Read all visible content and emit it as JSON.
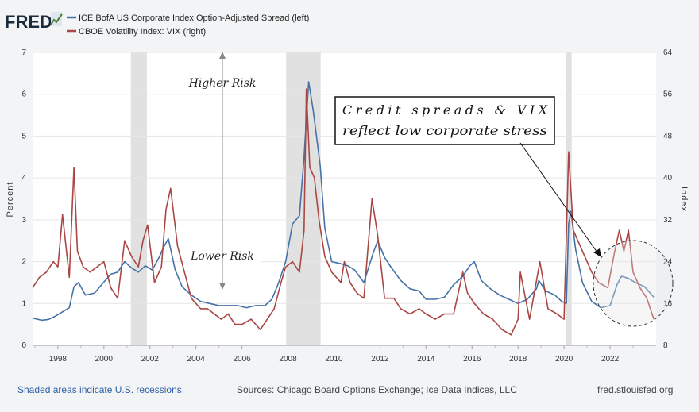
{
  "brand": {
    "name": "FRED"
  },
  "legend": [
    {
      "label": "ICE BofA US Corporate Index Option-Adjusted Spread (left)",
      "color": "#4572a7"
    },
    {
      "label": "CBOE Volatility Index: VIX (right)",
      "color": "#aa4643"
    }
  ],
  "annotations": {
    "higher": "Higher Risk",
    "lower": "Lower Risk",
    "callout_line1": "Credit spreads & VIX",
    "callout_line2": "reflect low corporate stress"
  },
  "footer": {
    "left": "Shaded areas indicate U.S. recessions.",
    "center": "Sources: Chicago Board Options Exchange; Ice Data Indices, LLC",
    "right": "fred.stlouisfed.org"
  },
  "chart_data": {
    "type": "line",
    "xlim": [
      1996.9,
      2024.0
    ],
    "x_ticks": [
      "1998",
      "2000",
      "2002",
      "2004",
      "2006",
      "2008",
      "2010",
      "2012",
      "2014",
      "2016",
      "2018",
      "2020",
      "2022"
    ],
    "y_left": {
      "label": "Percent",
      "range": [
        0,
        7
      ],
      "ticks": [
        "0",
        "1",
        "2",
        "3",
        "4",
        "5",
        "6",
        "7"
      ]
    },
    "y_right": {
      "label": "Index",
      "range": [
        8,
        64
      ],
      "ticks": [
        "8",
        "16",
        "24",
        "32",
        "40",
        "48",
        "56",
        "64"
      ]
    },
    "recessions": [
      [
        2001.17,
        2001.87
      ],
      [
        2007.92,
        2009.42
      ],
      [
        2020.08,
        2020.33
      ]
    ],
    "series": [
      {
        "name": "ICE BofA US Corporate Index Option-Adjusted Spread (left)",
        "axis": "left",
        "color": "#4572a7",
        "x": [
          1996.9,
          1997.3,
          1997.6,
          1997.9,
          1998.2,
          1998.5,
          1998.7,
          1998.9,
          1999.2,
          1999.6,
          1999.9,
          2000.3,
          2000.6,
          2000.9,
          2001.2,
          2001.5,
          2001.8,
          2002.1,
          2002.4,
          2002.6,
          2002.8,
          2003.1,
          2003.4,
          2003.8,
          2004.2,
          2004.6,
          2005.0,
          2005.4,
          2005.8,
          2006.2,
          2006.6,
          2007.0,
          2007.3,
          2007.6,
          2007.9,
          2008.2,
          2008.5,
          2008.7,
          2008.9,
          2009.1,
          2009.4,
          2009.6,
          2009.9,
          2010.3,
          2010.6,
          2010.9,
          2011.3,
          2011.7,
          2011.9,
          2012.2,
          2012.5,
          2012.9,
          2013.3,
          2013.7,
          2014.0,
          2014.4,
          2014.8,
          2015.2,
          2015.6,
          2015.9,
          2016.1,
          2016.4,
          2016.8,
          2017.2,
          2017.6,
          2018.0,
          2018.4,
          2018.8,
          2018.9,
          2019.2,
          2019.6,
          2019.9,
          2020.1,
          2020.2,
          2020.3,
          2020.5,
          2020.8,
          2021.2,
          2021.6,
          2022.0,
          2022.3,
          2022.5,
          2022.8,
          2023.1,
          2023.5,
          2023.9
        ],
        "y": [
          0.65,
          0.6,
          0.62,
          0.7,
          0.8,
          0.9,
          1.4,
          1.5,
          1.2,
          1.25,
          1.45,
          1.7,
          1.75,
          2.0,
          1.85,
          1.75,
          1.9,
          1.8,
          2.1,
          2.35,
          2.55,
          1.8,
          1.4,
          1.2,
          1.05,
          1.0,
          0.95,
          0.95,
          0.95,
          0.9,
          0.95,
          0.95,
          1.1,
          1.5,
          2.0,
          2.9,
          3.1,
          4.5,
          6.3,
          5.6,
          4.3,
          2.8,
          2.0,
          1.95,
          1.9,
          1.8,
          1.5,
          2.2,
          2.5,
          2.1,
          1.85,
          1.55,
          1.35,
          1.3,
          1.1,
          1.1,
          1.15,
          1.45,
          1.65,
          1.9,
          2.0,
          1.55,
          1.35,
          1.2,
          1.1,
          1.0,
          1.1,
          1.35,
          1.55,
          1.3,
          1.2,
          1.05,
          1.0,
          2.9,
          3.2,
          2.3,
          1.5,
          1.05,
          0.9,
          0.95,
          1.45,
          1.65,
          1.6,
          1.5,
          1.4,
          1.15
        ]
      },
      {
        "name": "CBOE Volatility Index: VIX (right)",
        "axis": "right",
        "color": "#aa4643",
        "x": [
          1996.9,
          1997.2,
          1997.5,
          1997.8,
          1998.0,
          1998.2,
          1998.5,
          1998.7,
          1998.85,
          1999.1,
          1999.4,
          1999.7,
          2000.0,
          2000.3,
          2000.6,
          2000.9,
          2001.2,
          2001.5,
          2001.7,
          2001.9,
          2002.2,
          2002.5,
          2002.7,
          2002.9,
          2003.2,
          2003.5,
          2003.8,
          2004.2,
          2004.5,
          2004.8,
          2005.1,
          2005.4,
          2005.7,
          2006.0,
          2006.4,
          2006.8,
          2007.1,
          2007.4,
          2007.7,
          2007.9,
          2008.2,
          2008.5,
          2008.7,
          2008.8,
          2008.95,
          2009.15,
          2009.35,
          2009.6,
          2009.9,
          2010.3,
          2010.45,
          2010.7,
          2011.0,
          2011.3,
          2011.65,
          2011.9,
          2012.2,
          2012.6,
          2012.9,
          2013.3,
          2013.7,
          2014.0,
          2014.4,
          2014.8,
          2015.2,
          2015.6,
          2015.8,
          2016.1,
          2016.5,
          2016.9,
          2017.3,
          2017.7,
          2018.0,
          2018.1,
          2018.5,
          2018.95,
          2019.3,
          2019.7,
          2020.0,
          2020.2,
          2020.4,
          2020.7,
          2020.9,
          2021.2,
          2021.5,
          2021.9,
          2022.2,
          2022.4,
          2022.6,
          2022.8,
          2023.0,
          2023.3,
          2023.6,
          2023.9
        ],
        "y": [
          19,
          21,
          22,
          24,
          23,
          33,
          21,
          42,
          26,
          23,
          22,
          23,
          24,
          19,
          17,
          28,
          25,
          23,
          28,
          31,
          20,
          23,
          34,
          38,
          27,
          22,
          17,
          15,
          15,
          14,
          13,
          14,
          12,
          12,
          13,
          11,
          13,
          15,
          20,
          23,
          24,
          22,
          30,
          57,
          42,
          40,
          32,
          25,
          22,
          20,
          24,
          20,
          18,
          17,
          36,
          29,
          17,
          17,
          15,
          14,
          15,
          14,
          13,
          14,
          14,
          22,
          18,
          16,
          14,
          13,
          11,
          10,
          13,
          22,
          13,
          24,
          15,
          14,
          13,
          45,
          30,
          27,
          25,
          22,
          20,
          19,
          26,
          30,
          26,
          30,
          22,
          19,
          17,
          13
        ]
      }
    ]
  }
}
